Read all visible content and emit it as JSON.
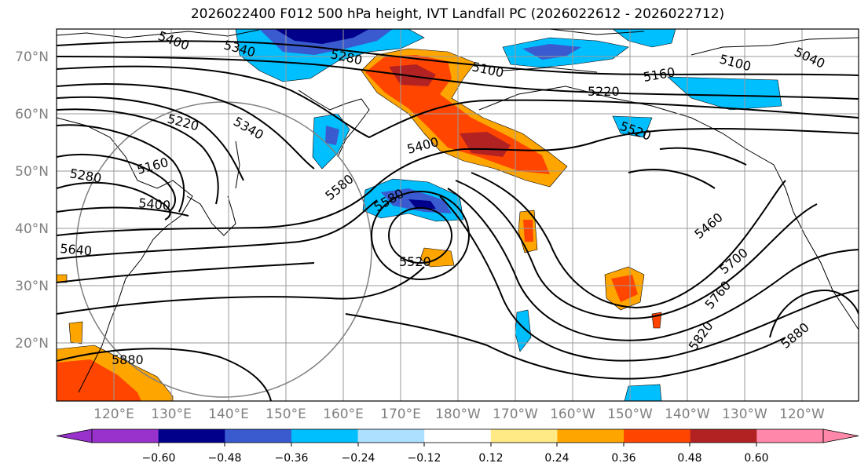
{
  "title": "2026022400 F012 500 hPa height, IVT Landfall PC (2026022612 - 2026022712)",
  "lat_labels": [
    "70°N",
    "60°N",
    "50°N",
    "40°N",
    "30°N",
    "20°N"
  ],
  "lon_labels": [
    "120°E",
    "130°E",
    "140°E",
    "150°E",
    "160°E",
    "170°E",
    "180°W",
    "170°W",
    "160°W",
    "150°W",
    "140°W",
    "130°W",
    "120°W"
  ],
  "contour_labels": [
    "5400",
    "5340",
    "5280",
    "5100",
    "5160",
    "5220",
    "5040",
    "5100",
    "5220",
    "5340",
    "5520",
    "5160",
    "5400",
    "5280",
    "5400",
    "5580",
    "5580",
    "5640",
    "5520",
    "5460",
    "5700",
    "5760",
    "5820",
    "5880",
    "5880"
  ],
  "colorbar": {
    "ticks": [
      "−0.60",
      "−0.48",
      "−0.36",
      "−0.24",
      "−0.12",
      "0.12",
      "0.24",
      "0.36",
      "0.48",
      "0.60"
    ],
    "colors": [
      "#9932CC",
      "#00008B",
      "#3A5BCF",
      "#00BFFF",
      "#ADDFFF",
      "#FFFFFF",
      "#FFEA85",
      "#FFA500",
      "#FF4500",
      "#B22222",
      "#FF88AA"
    ]
  }
}
